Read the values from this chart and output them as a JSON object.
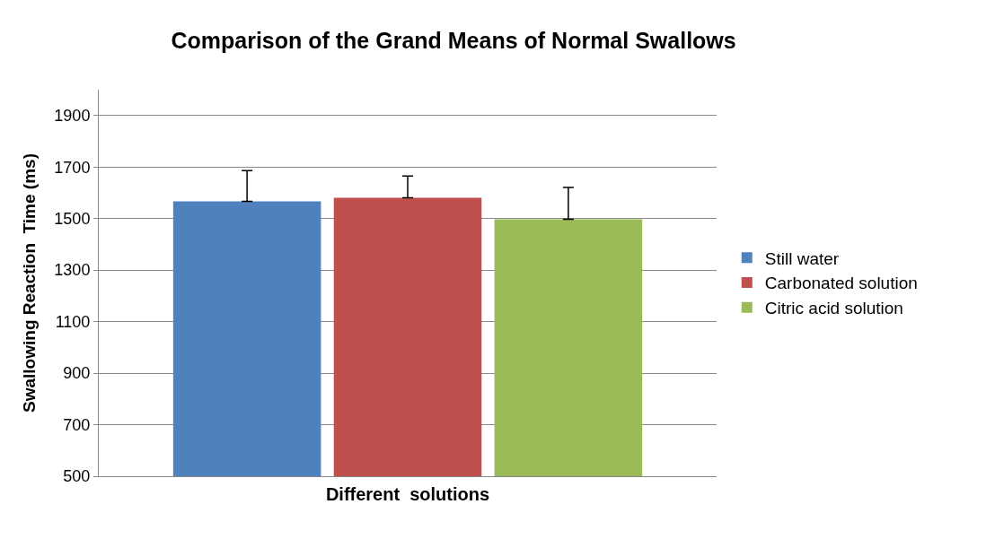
{
  "chart_data": {
    "type": "bar",
    "title": "Comparison of the Grand Means of Normal Swallows",
    "xlabel": "Different  solutions",
    "ylabel": "Swallowing Reaction  Time (ms)",
    "categories": [
      null
    ],
    "series": [
      {
        "name": "Still water",
        "color": "#4f81bd",
        "values": [
          1567
        ],
        "errors": [
          [
            1567,
            1686
          ]
        ]
      },
      {
        "name": "Carbonated solution",
        "color": "#c0504d",
        "values": [
          1581
        ],
        "errors": [
          [
            1581,
            1665
          ]
        ]
      },
      {
        "name": "Citric acid solution",
        "color": "#9bbb59",
        "values": [
          1497
        ],
        "errors": [
          [
            1497,
            1621
          ]
        ]
      }
    ],
    "ylim": [
      500,
      2000
    ],
    "yticks": [
      500,
      700,
      900,
      1100,
      1300,
      1500,
      1700,
      1900
    ],
    "grid": "y",
    "legend": "right"
  }
}
